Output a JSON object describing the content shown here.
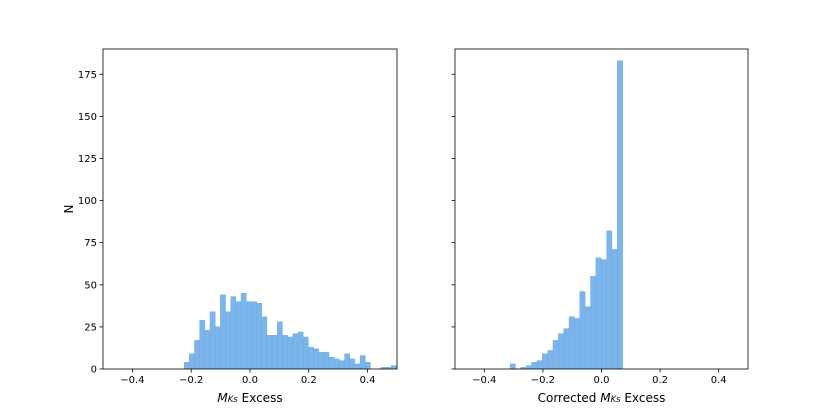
{
  "chart_data": [
    {
      "type": "bar",
      "title": "",
      "xlabel_main": "M",
      "xlabel_sub": "Ks",
      "xlabel_tail": " Excess",
      "ylabel": "N",
      "xlim": [
        -0.5,
        0.5
      ],
      "ylim": [
        0,
        190
      ],
      "xticks": [
        -0.4,
        -0.2,
        0.0,
        0.2,
        0.4
      ],
      "xtick_labels": [
        "−0.4",
        "−0.2",
        "0.0",
        "0.2",
        "0.4"
      ],
      "yticks": [
        0,
        25,
        50,
        75,
        100,
        125,
        150,
        175
      ],
      "ytick_labels": [
        "0",
        "25",
        "50",
        "75",
        "100",
        "125",
        "150",
        "175"
      ],
      "bar_color": "#7cb5ec",
      "bin_width": 0.0176,
      "bin_start": -0.224,
      "values": [
        4,
        9,
        17,
        29,
        23,
        34,
        25,
        44,
        34,
        43,
        40,
        45,
        40,
        40,
        39,
        31,
        20,
        20,
        28,
        20,
        19,
        21,
        22,
        19,
        13,
        12,
        10,
        10,
        7,
        6,
        5,
        9,
        6,
        3,
        8,
        4,
        0,
        0,
        1,
        1,
        2
      ]
    },
    {
      "type": "bar",
      "title": "",
      "xlabel_main": "Corrected M",
      "xlabel_sub": "Ks",
      "xlabel_tail": " Excess",
      "ylabel": "",
      "xlim": [
        -0.5,
        0.5
      ],
      "ylim": [
        0,
        190
      ],
      "xticks": [
        -0.4,
        -0.2,
        0.0,
        0.2,
        0.4
      ],
      "xtick_labels": [
        "−0.4",
        "−0.2",
        "0.0",
        "0.2",
        "0.4"
      ],
      "yticks": [
        0,
        25,
        50,
        75,
        100,
        125,
        150,
        175
      ],
      "bar_color": "#7cb5ec",
      "bin_width": 0.0183,
      "bin_start": -0.312,
      "values": [
        3,
        0,
        1,
        2,
        4,
        5,
        9,
        11,
        17,
        21,
        24,
        31,
        30,
        46,
        37,
        55,
        66,
        65,
        82,
        71,
        183
      ]
    }
  ]
}
